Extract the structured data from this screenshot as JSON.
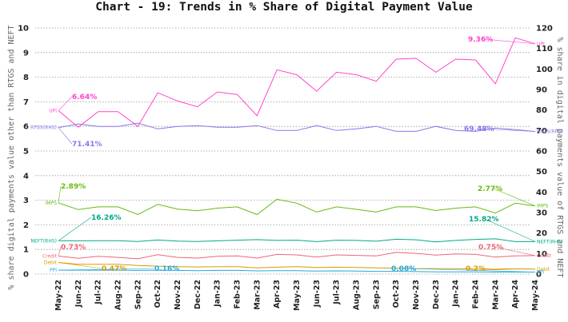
{
  "chart_data": {
    "type": "line",
    "title": "Chart - 19: Trends in % Share of Digital Payment Value",
    "ylabel": "% share digital payments value other than RTGS and NEFT",
    "y2label": "% share in digital payments value of RTGS and NEFT",
    "ylim": [
      0,
      10
    ],
    "y2lim": [
      0,
      120
    ],
    "yticks": [
      "0",
      "1",
      "2",
      "3",
      "4",
      "5",
      "6",
      "7",
      "8",
      "9",
      "10"
    ],
    "y2ticks": [
      "0",
      "10",
      "20",
      "30",
      "40",
      "50",
      "60",
      "70",
      "80",
      "90",
      "100",
      "110",
      "120"
    ],
    "grid": true,
    "categories": [
      "May-22",
      "Jun-22",
      "Jul-22",
      "Aug-22",
      "Sep-22",
      "Oct-22",
      "Nov-22",
      "Dec-22",
      "Jan-23",
      "Feb-23",
      "Mar-23",
      "Apr-23",
      "May-23",
      "Jun-23",
      "Jul-23",
      "Aug-23",
      "Sep-23",
      "Oct-23",
      "Nov-23",
      "Dec-23",
      "Jan-24",
      "Feb-24",
      "Mar-24",
      "Apr-24",
      "May-24"
    ],
    "series": [
      {
        "name": "UPI",
        "axis": "right",
        "color": "#ff44cc",
        "tag_side": "left",
        "values": [
          79.7,
          71.6,
          79.2,
          79.2,
          72.0,
          88.4,
          84.4,
          81.6,
          88.8,
          87.6,
          77.2,
          99.6,
          97.2,
          89.2,
          98.4,
          97.2,
          94.0,
          104.8,
          105.2,
          98.4,
          104.8,
          104.4,
          92.8,
          115.2,
          112.3
        ]
      },
      {
        "name": "RTGS(RHS)",
        "axis": "right",
        "color": "#8877ee",
        "tag_side": "left",
        "values": [
          71.4,
          73.2,
          72.0,
          72.0,
          73.6,
          70.8,
          72.0,
          72.4,
          71.6,
          71.6,
          72.4,
          70.0,
          70.0,
          72.4,
          70.0,
          70.8,
          72.0,
          69.6,
          69.6,
          72.0,
          70.0,
          69.6,
          71.2,
          70.4,
          69.5
        ]
      },
      {
        "name": "IMPS",
        "axis": "left",
        "color": "#66bb11",
        "tag_side": "left",
        "values": [
          2.89,
          2.62,
          2.73,
          2.73,
          2.42,
          2.83,
          2.64,
          2.57,
          2.68,
          2.73,
          2.42,
          3.04,
          2.88,
          2.52,
          2.73,
          2.63,
          2.52,
          2.73,
          2.73,
          2.58,
          2.68,
          2.73,
          2.48,
          2.88,
          2.77
        ]
      },
      {
        "name": "NEFT(RHS)",
        "axis": "right",
        "color": "#00aa88",
        "tag_side": "left",
        "values": [
          16.26,
          16.2,
          16.3,
          16.3,
          15.9,
          16.6,
          16.1,
          15.9,
          16.2,
          16.5,
          16.8,
          16.4,
          16.5,
          15.8,
          16.5,
          16.4,
          16.0,
          17.0,
          16.7,
          15.7,
          16.4,
          16.9,
          17.2,
          15.8,
          15.82
        ]
      },
      {
        "name": "Credit",
        "axis": "left",
        "color": "#ee6677",
        "tag_side": "both",
        "values": [
          0.73,
          0.64,
          0.72,
          0.68,
          0.62,
          0.79,
          0.68,
          0.65,
          0.72,
          0.74,
          0.65,
          0.8,
          0.78,
          0.69,
          0.78,
          0.76,
          0.74,
          0.88,
          0.84,
          0.77,
          0.82,
          0.8,
          0.69,
          0.74,
          0.75
        ]
      },
      {
        "name": "Debit",
        "axis": "left",
        "color": "#dd9900",
        "tag_side": "both",
        "values": [
          0.47,
          0.4,
          0.4,
          0.4,
          0.35,
          0.32,
          0.3,
          0.29,
          0.3,
          0.3,
          0.25,
          0.28,
          0.3,
          0.27,
          0.28,
          0.27,
          0.25,
          0.24,
          0.22,
          0.22,
          0.22,
          0.2,
          0.18,
          0.21,
          0.2
        ]
      },
      {
        "name": "PPI",
        "axis": "left",
        "color": "#22aadd",
        "tag_side": "both",
        "values": [
          0.16,
          0.16,
          0.16,
          0.16,
          0.15,
          0.16,
          0.15,
          0.14,
          0.15,
          0.15,
          0.13,
          0.14,
          0.14,
          0.12,
          0.13,
          0.12,
          0.11,
          0.11,
          0.1,
          0.09,
          0.09,
          0.09,
          0.08,
          0.08,
          0.08
        ]
      }
    ],
    "annotations": [
      {
        "text": "6.64%",
        "series": "UPI",
        "color": "#ff44cc"
      },
      {
        "text": "9.36%",
        "series": "UPI",
        "color": "#ff44cc"
      },
      {
        "text": "71.41%",
        "series": "RTGS(RHS)",
        "color": "#8877ee"
      },
      {
        "text": "69.48%",
        "series": "RTGS(RHS)",
        "color": "#8877ee"
      },
      {
        "text": "2.89%",
        "series": "IMPS",
        "color": "#66bb11"
      },
      {
        "text": "2.77%",
        "series": "IMPS",
        "color": "#66bb11"
      },
      {
        "text": "16.26%",
        "series": "NEFT(RHS)",
        "color": "#00aa88"
      },
      {
        "text": "15.82%",
        "series": "NEFT(RHS)",
        "color": "#00aa88"
      },
      {
        "text": "0.73%",
        "series": "Credit",
        "color": "#ee6677"
      },
      {
        "text": "0.75%",
        "series": "Credit",
        "color": "#ee6677"
      },
      {
        "text": "0.47%",
        "series": "Debit",
        "color": "#dd9900"
      },
      {
        "text": "0.2%",
        "series": "Debit",
        "color": "#dd9900"
      },
      {
        "text": "0.16%",
        "series": "PPI",
        "color": "#22aadd"
      },
      {
        "text": "0.08%",
        "series": "PPI",
        "color": "#22aadd"
      }
    ]
  }
}
